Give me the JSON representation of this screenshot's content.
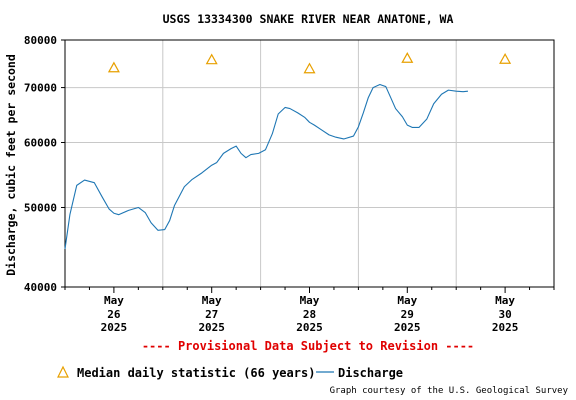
{
  "chart_data": {
    "type": "line",
    "title": "USGS 13334300 SNAKE RIVER NEAR ANATONE, WA",
    "ylabel": "Discharge, cubic feet per second",
    "yscale": "log",
    "ylim": [
      40000,
      80000
    ],
    "yticks": [
      40000,
      50000,
      60000,
      70000,
      80000
    ],
    "ytick_labels": [
      "40000",
      "50000",
      "60000",
      "70000",
      "80000"
    ],
    "xlim": [
      25.5,
      30.5
    ],
    "xticks": [
      {
        "x": 26,
        "month": "May",
        "day": "26",
        "year": "2025"
      },
      {
        "x": 27,
        "month": "May",
        "day": "27",
        "year": "2025"
      },
      {
        "x": 28,
        "month": "May",
        "day": "28",
        "year": "2025"
      },
      {
        "x": 29,
        "month": "May",
        "day": "29",
        "year": "2025"
      },
      {
        "x": 30,
        "month": "May",
        "day": "30",
        "year": "2025"
      }
    ],
    "grid": true,
    "legend_position": "bottom",
    "series": [
      {
        "name": "Discharge",
        "color": "#1f77b4",
        "x": [
          25.5,
          25.55,
          25.62,
          25.7,
          25.8,
          25.88,
          25.95,
          26.0,
          26.05,
          26.15,
          26.25,
          26.32,
          26.38,
          26.45,
          26.52,
          26.57,
          26.62,
          26.72,
          26.8,
          26.9,
          27.0,
          27.05,
          27.12,
          27.2,
          27.25,
          27.3,
          27.35,
          27.4,
          27.48,
          27.55,
          27.62,
          27.68,
          27.75,
          27.8,
          27.88,
          27.95,
          28.0,
          28.05,
          28.12,
          28.2,
          28.27,
          28.35,
          28.45,
          28.5,
          28.55,
          28.6,
          28.65,
          28.72,
          28.78,
          28.82,
          28.88,
          28.95,
          29.0,
          29.05,
          29.12,
          29.2,
          29.27,
          29.35,
          29.42,
          29.5,
          29.57,
          29.62
        ],
        "y": [
          44500,
          49000,
          53200,
          54000,
          53600,
          51500,
          49800,
          49200,
          49000,
          49600,
          50000,
          49300,
          47900,
          46900,
          47000,
          48200,
          50300,
          53000,
          54100,
          55100,
          56300,
          56700,
          58200,
          59000,
          59400,
          58200,
          57500,
          58000,
          58200,
          58800,
          61500,
          65000,
          66200,
          66000,
          65200,
          64400,
          63500,
          63000,
          62200,
          61300,
          60900,
          60600,
          61100,
          62700,
          65200,
          68000,
          70000,
          70600,
          70200,
          68500,
          66000,
          64500,
          63000,
          62600,
          62600,
          64100,
          66900,
          68700,
          69500,
          69300,
          69200,
          69300
        ]
      },
      {
        "name": "Median daily statistic (66 years)",
        "marker": "triangle",
        "color": "#e8a000",
        "x": [
          26.0,
          27.0,
          28.0,
          29.0,
          30.0
        ],
        "y": [
          74000,
          75700,
          73800,
          76000,
          75800
        ]
      }
    ],
    "annotation": "---- Provisional Data Subject to Revision ----",
    "credit": "Graph courtesy of the U.S. Geological Survey"
  }
}
